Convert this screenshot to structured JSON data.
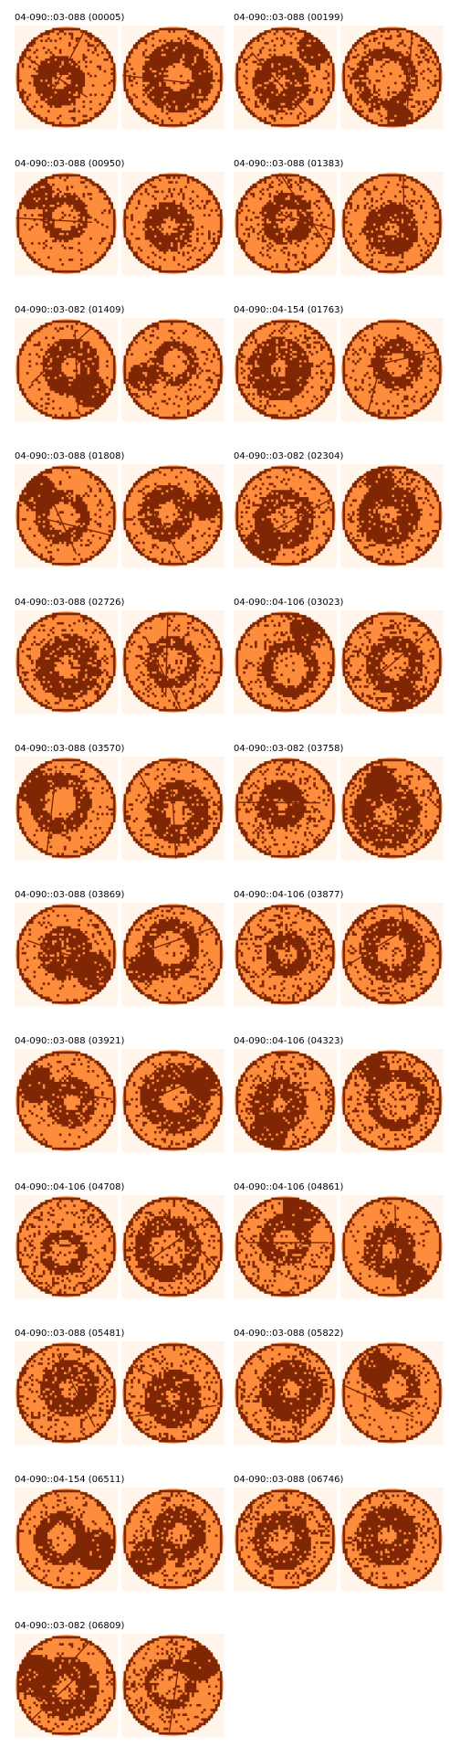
{
  "colors": {
    "background": "#fff5eb",
    "wafer": "#fd8d3c",
    "defect": "#7f2704"
  },
  "panels": [
    {
      "label": "04-090::03-088 (00005)"
    },
    {
      "label": "04-090::03-088 (00199)"
    },
    {
      "label": "04-090::03-088 (00950)"
    },
    {
      "label": "04-090::03-088 (01383)"
    },
    {
      "label": "04-090::03-082 (01409)"
    },
    {
      "label": "04-090::04-154 (01763)"
    },
    {
      "label": "04-090::03-088 (01808)"
    },
    {
      "label": "04-090::03-082 (02304)"
    },
    {
      "label": "04-090::03-088 (02726)"
    },
    {
      "label": "04-090::04-106 (03023)"
    },
    {
      "label": "04-090::03-088 (03570)"
    },
    {
      "label": "04-090::03-082 (03758)"
    },
    {
      "label": "04-090::03-088 (03869)"
    },
    {
      "label": "04-090::04-106 (03877)"
    },
    {
      "label": "04-090::03-088 (03921)"
    },
    {
      "label": "04-090::04-106 (04323)"
    },
    {
      "label": "04-090::04-106 (04708)"
    },
    {
      "label": "04-090::04-106 (04861)"
    },
    {
      "label": "04-090::03-088 (05481)"
    },
    {
      "label": "04-090::03-088 (05822)"
    },
    {
      "label": "04-090::04-154 (06511)"
    },
    {
      "label": "04-090::03-088 (06746)"
    },
    {
      "label": "04-090::03-082 (06809)"
    }
  ]
}
